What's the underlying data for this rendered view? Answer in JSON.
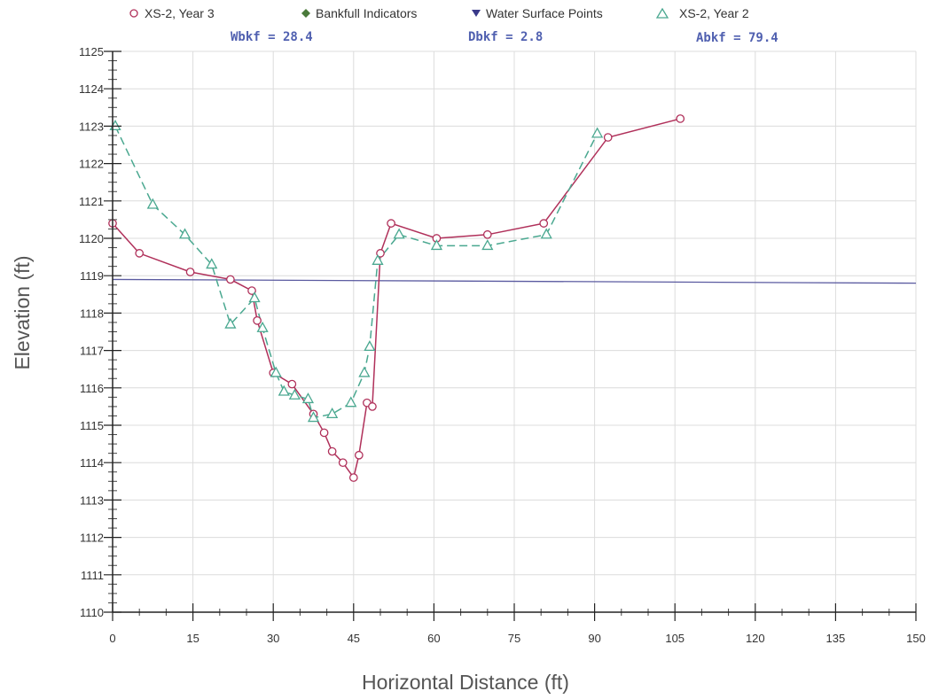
{
  "chart_data": {
    "type": "line",
    "xlabel": "Horizontal Distance (ft)",
    "ylabel": "Elevation (ft)",
    "xlim": [
      0,
      150
    ],
    "ylim": [
      1110,
      1125
    ],
    "x_ticks": [
      "0",
      "15",
      "30",
      "45",
      "60",
      "75",
      "90",
      "105",
      "120",
      "135",
      "150"
    ],
    "y_ticks": [
      "1110",
      "1111",
      "1112",
      "1113",
      "1114",
      "1115",
      "1116",
      "1117",
      "1118",
      "1119",
      "1120",
      "1121",
      "1122",
      "1123",
      "1124",
      "1125"
    ],
    "grid": true,
    "legend": [
      {
        "label": "XS-2, Year 3",
        "marker": "circle",
        "color": "#b0305a"
      },
      {
        "label": "Bankfull Indicators",
        "marker": "diamond",
        "color": "#4a7a3a"
      },
      {
        "label": "Water Surface Points",
        "marker": "triangle-down",
        "color": "#3a3a8a"
      },
      {
        "label": "XS-2, Year 2",
        "marker": "triangle",
        "color": "#4aa890"
      }
    ],
    "stats": [
      {
        "text": "Wbkf = 28.4"
      },
      {
        "text": "Dbkf = 2.8"
      },
      {
        "text": "Abkf = 79.4"
      }
    ],
    "stat_color": "#5060b0",
    "water_surface": {
      "y_start": 1118.9,
      "y_end": 1118.8,
      "color": "#5a5aa0"
    },
    "series": [
      {
        "name": "XS-2, Year 3",
        "marker": "circle",
        "color": "#b0305a",
        "dash": false,
        "points": [
          [
            0,
            1120.4
          ],
          [
            5,
            1119.6
          ],
          [
            14.5,
            1119.1
          ],
          [
            22,
            1118.9
          ],
          [
            26,
            1118.6
          ],
          [
            27,
            1117.8
          ],
          [
            30,
            1116.4
          ],
          [
            33.5,
            1116.1
          ],
          [
            37.5,
            1115.3
          ],
          [
            39.5,
            1114.8
          ],
          [
            41,
            1114.3
          ],
          [
            43,
            1114.0
          ],
          [
            45,
            1113.6
          ],
          [
            46,
            1114.2
          ],
          [
            47.5,
            1115.6
          ],
          [
            48.5,
            1115.5
          ],
          [
            50,
            1119.6
          ],
          [
            52,
            1120.4
          ],
          [
            60.5,
            1120.0
          ],
          [
            70,
            1120.1
          ],
          [
            80.5,
            1120.4
          ],
          [
            92.5,
            1122.7
          ],
          [
            106,
            1123.2
          ]
        ]
      },
      {
        "name": "XS-2, Year 2",
        "marker": "triangle",
        "color": "#4aa890",
        "dash": true,
        "points": [
          [
            0.5,
            1123.0
          ],
          [
            7.5,
            1120.9
          ],
          [
            13.5,
            1120.1
          ],
          [
            18.5,
            1119.3
          ],
          [
            22,
            1117.7
          ],
          [
            26.5,
            1118.4
          ],
          [
            28,
            1117.6
          ],
          [
            30.5,
            1116.4
          ],
          [
            32,
            1115.9
          ],
          [
            34,
            1115.8
          ],
          [
            36.5,
            1115.7
          ],
          [
            37.5,
            1115.2
          ],
          [
            41,
            1115.3
          ],
          [
            44.5,
            1115.6
          ],
          [
            47,
            1116.4
          ],
          [
            48,
            1117.1
          ],
          [
            49.5,
            1119.4
          ],
          [
            53.5,
            1120.1
          ],
          [
            60.5,
            1119.8
          ],
          [
            70,
            1119.8
          ],
          [
            81,
            1120.1
          ],
          [
            90.5,
            1122.8
          ]
        ]
      }
    ]
  }
}
